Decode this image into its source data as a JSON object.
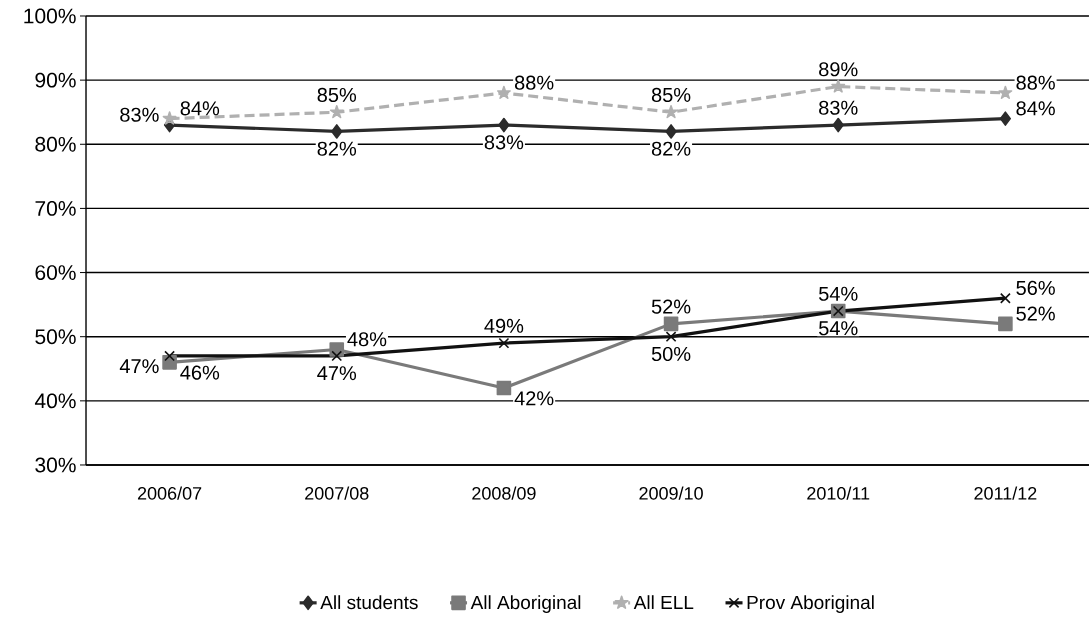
{
  "chart_data": {
    "type": "line",
    "categories": [
      "2006/07",
      "2007/08",
      "2008/09",
      "2009/10",
      "2010/11",
      "2011/12"
    ],
    "ylim": [
      30,
      100
    ],
    "yticks": [
      {
        "value": 30,
        "label": "30%"
      },
      {
        "value": 40,
        "label": "40%"
      },
      {
        "value": 50,
        "label": "50%"
      },
      {
        "value": 60,
        "label": "60%"
      },
      {
        "value": 70,
        "label": "70%"
      },
      {
        "value": 80,
        "label": "80%"
      },
      {
        "value": 90,
        "label": "90%"
      },
      {
        "value": 100,
        "label": "100%"
      }
    ],
    "grid": "y",
    "legend": "bottom",
    "series": [
      {
        "name": "All students",
        "color": "#2b2b2b",
        "marker": "diamond",
        "line_style": "solid",
        "values": [
          83,
          82,
          83,
          82,
          83,
          84
        ],
        "value_labels": [
          "83%",
          "82%",
          "83%",
          "82%",
          "83%",
          "84%"
        ]
      },
      {
        "name": "All Aboriginal",
        "color": "#7a7a7a",
        "marker": "square",
        "line_style": "solid",
        "values": [
          46,
          48,
          42,
          52,
          54,
          52
        ],
        "value_labels": [
          "46%",
          "48%",
          "42%",
          "52%",
          "54%",
          "52%"
        ]
      },
      {
        "name": "All ELL",
        "color": "#b0b0b0",
        "marker": "star",
        "line_style": "dashed",
        "values": [
          84,
          85,
          88,
          85,
          89,
          88
        ],
        "value_labels": [
          "84%",
          "85%",
          "88%",
          "85%",
          "89%",
          "88%"
        ]
      },
      {
        "name": "Prov Aboriginal",
        "color": "#111111",
        "marker": "cross",
        "line_style": "solid",
        "values": [
          47,
          47,
          49,
          50,
          54,
          56
        ],
        "value_labels": [
          "47%",
          "47%",
          "49%",
          "50%",
          "54%",
          "56%"
        ]
      }
    ]
  }
}
